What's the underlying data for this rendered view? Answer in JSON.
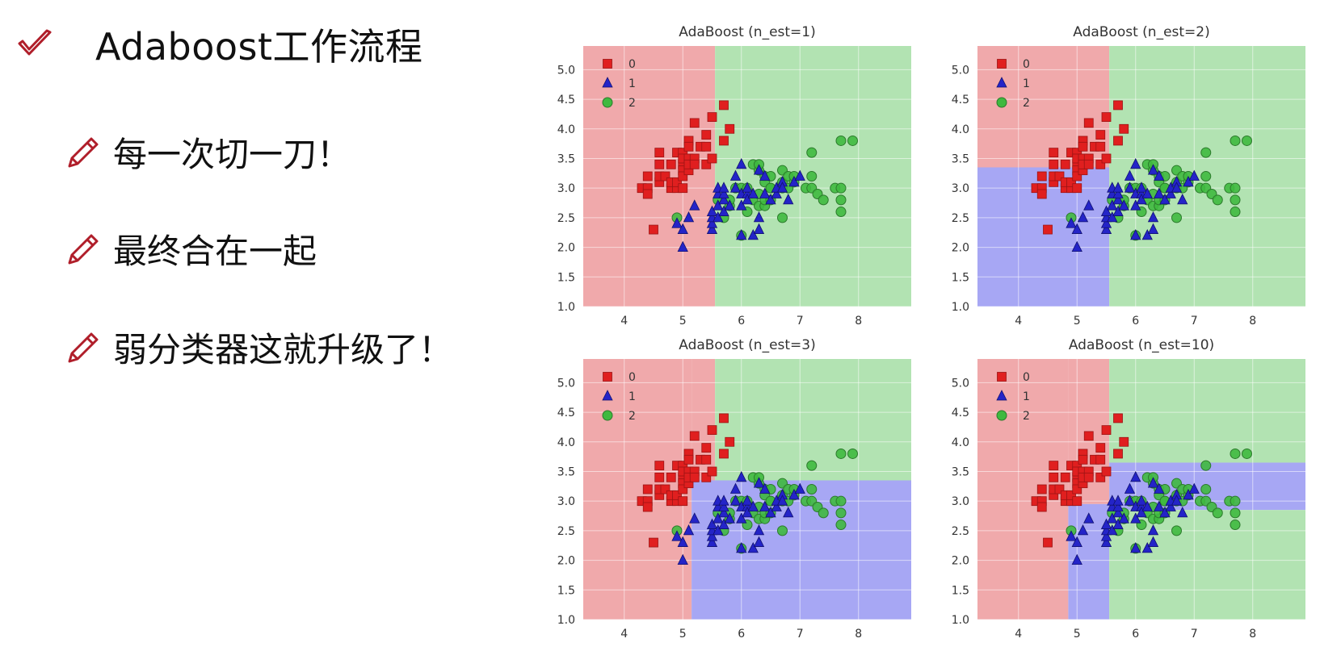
{
  "slide": {
    "title": "Adaboost工作流程",
    "bullets": [
      "每一次切一刀！",
      "最终合在一起",
      "弱分类器这就升级了！"
    ]
  },
  "colors": {
    "region_0": "#f0a9ab",
    "region_1": "#a7a7f4",
    "region_2": "#b2e3b2",
    "class_0": "#e01f1f",
    "class_1": "#2424c8",
    "class_2": "#3fb93f",
    "accent": "#b01e2a"
  },
  "chart_data": [
    {
      "type": "scatter",
      "title": "AdaBoost (n_est=1)",
      "xlim": [
        3.3,
        8.9
      ],
      "ylim": [
        1.0,
        5.4
      ],
      "xticks": [
        "4",
        "5",
        "6",
        "7",
        "8"
      ],
      "yticks": [
        "1.0",
        "1.5",
        "2.0",
        "2.5",
        "3.0",
        "3.5",
        "4.0",
        "4.5",
        "5.0"
      ],
      "legend": [
        "0",
        "1",
        "2"
      ],
      "legend_position": "top-left",
      "grid": true,
      "decision_regions": [
        {
          "class": 0,
          "x": [
            3.3,
            5.55
          ],
          "y": [
            1.0,
            5.4
          ]
        },
        {
          "class": 2,
          "x": [
            5.55,
            8.9
          ],
          "y": [
            1.0,
            5.4
          ]
        }
      ]
    },
    {
      "type": "scatter",
      "title": "AdaBoost (n_est=2)",
      "xlim": [
        3.3,
        8.9
      ],
      "ylim": [
        1.0,
        5.4
      ],
      "xticks": [
        "4",
        "5",
        "6",
        "7",
        "8"
      ],
      "yticks": [
        "1.0",
        "1.5",
        "2.0",
        "2.5",
        "3.0",
        "3.5",
        "4.0",
        "4.5",
        "5.0"
      ],
      "legend": [
        "0",
        "1",
        "2"
      ],
      "legend_position": "top-left",
      "grid": true,
      "decision_regions": [
        {
          "class": 0,
          "x": [
            3.3,
            5.55
          ],
          "y": [
            3.35,
            5.4
          ]
        },
        {
          "class": 1,
          "x": [
            3.3,
            5.55
          ],
          "y": [
            1.0,
            3.35
          ]
        },
        {
          "class": 2,
          "x": [
            5.55,
            8.9
          ],
          "y": [
            1.0,
            5.4
          ]
        }
      ]
    },
    {
      "type": "scatter",
      "title": "AdaBoost (n_est=3)",
      "xlim": [
        3.3,
        8.9
      ],
      "ylim": [
        1.0,
        5.4
      ],
      "xticks": [
        "4",
        "5",
        "6",
        "7",
        "8"
      ],
      "yticks": [
        "1.0",
        "1.5",
        "2.0",
        "2.5",
        "3.0",
        "3.5",
        "4.0",
        "4.5",
        "5.0"
      ],
      "legend": [
        "0",
        "1",
        "2"
      ],
      "legend_position": "top-left",
      "grid": true,
      "decision_regions": [
        {
          "class": 0,
          "x": [
            3.3,
            5.15
          ],
          "y": [
            1.0,
            5.4
          ]
        },
        {
          "class": 0,
          "x": [
            5.15,
            5.55
          ],
          "y": [
            3.35,
            5.4
          ]
        },
        {
          "class": 2,
          "x": [
            5.55,
            8.9
          ],
          "y": [
            3.35,
            5.4
          ]
        },
        {
          "class": 1,
          "x": [
            5.15,
            8.9
          ],
          "y": [
            1.0,
            3.35
          ]
        }
      ]
    },
    {
      "type": "scatter",
      "title": "AdaBoost (n_est=10)",
      "xlim": [
        3.3,
        8.9
      ],
      "ylim": [
        1.0,
        5.4
      ],
      "xticks": [
        "4",
        "5",
        "6",
        "7",
        "8"
      ],
      "yticks": [
        "1.0",
        "1.5",
        "2.0",
        "2.5",
        "3.0",
        "3.5",
        "4.0",
        "4.5",
        "5.0"
      ],
      "legend": [
        "0",
        "1",
        "2"
      ],
      "legend_position": "top-left",
      "grid": true,
      "decision_regions": [
        {
          "class": 0,
          "x": [
            3.3,
            4.85
          ],
          "y": [
            1.0,
            5.4
          ]
        },
        {
          "class": 0,
          "x": [
            4.85,
            5.55
          ],
          "y": [
            2.95,
            5.4
          ]
        },
        {
          "class": 1,
          "x": [
            4.85,
            5.55
          ],
          "y": [
            1.0,
            2.95
          ]
        },
        {
          "class": 2,
          "x": [
            5.55,
            8.9
          ],
          "y": [
            3.65,
            5.4
          ]
        },
        {
          "class": 1,
          "x": [
            5.55,
            8.9
          ],
          "y": [
            2.85,
            3.65
          ]
        },
        {
          "class": 2,
          "x": [
            5.55,
            8.9
          ],
          "y": [
            1.0,
            2.85
          ]
        }
      ]
    }
  ],
  "scatter_points": {
    "class_0": [
      [
        4.3,
        3.0
      ],
      [
        4.4,
        3.0
      ],
      [
        4.4,
        3.2
      ],
      [
        4.4,
        2.9
      ],
      [
        4.5,
        2.3
      ],
      [
        4.6,
        3.1
      ],
      [
        4.6,
        3.4
      ],
      [
        4.6,
        3.6
      ],
      [
        4.6,
        3.2
      ],
      [
        4.7,
        3.2
      ],
      [
        4.8,
        3.0
      ],
      [
        4.8,
        3.4
      ],
      [
        4.8,
        3.1
      ],
      [
        4.9,
        3.0
      ],
      [
        4.9,
        3.1
      ],
      [
        4.9,
        3.6
      ],
      [
        5.0,
        3.6
      ],
      [
        5.0,
        3.4
      ],
      [
        5.0,
        3.0
      ],
      [
        5.0,
        3.3
      ],
      [
        5.0,
        3.5
      ],
      [
        5.0,
        3.2
      ],
      [
        5.1,
        3.5
      ],
      [
        5.1,
        3.8
      ],
      [
        5.1,
        3.7
      ],
      [
        5.1,
        3.3
      ],
      [
        5.1,
        3.4
      ],
      [
        5.2,
        3.5
      ],
      [
        5.2,
        3.4
      ],
      [
        5.2,
        4.1
      ],
      [
        5.3,
        3.7
      ],
      [
        5.4,
        3.9
      ],
      [
        5.4,
        3.7
      ],
      [
        5.4,
        3.4
      ],
      [
        5.5,
        4.2
      ],
      [
        5.5,
        3.5
      ],
      [
        5.7,
        4.4
      ],
      [
        5.7,
        3.8
      ],
      [
        5.8,
        4.0
      ]
    ],
    "class_1": [
      [
        4.9,
        2.4
      ],
      [
        5.0,
        2.0
      ],
      [
        5.0,
        2.3
      ],
      [
        5.1,
        2.5
      ],
      [
        5.2,
        2.7
      ],
      [
        5.5,
        2.3
      ],
      [
        5.5,
        2.4
      ],
      [
        5.5,
        2.5
      ],
      [
        5.5,
        2.6
      ],
      [
        5.6,
        2.9
      ],
      [
        5.6,
        3.0
      ],
      [
        5.6,
        2.5
      ],
      [
        5.6,
        2.7
      ],
      [
        5.7,
        2.8
      ],
      [
        5.7,
        2.6
      ],
      [
        5.7,
        2.9
      ],
      [
        5.7,
        3.0
      ],
      [
        5.8,
        2.7
      ],
      [
        5.9,
        3.0
      ],
      [
        5.9,
        3.2
      ],
      [
        6.0,
        2.2
      ],
      [
        6.0,
        2.9
      ],
      [
        6.0,
        2.7
      ],
      [
        6.0,
        3.4
      ],
      [
        6.1,
        2.9
      ],
      [
        6.1,
        2.8
      ],
      [
        6.1,
        3.0
      ],
      [
        6.2,
        2.2
      ],
      [
        6.2,
        2.9
      ],
      [
        6.3,
        3.3
      ],
      [
        6.3,
        2.5
      ],
      [
        6.3,
        2.3
      ],
      [
        6.4,
        3.2
      ],
      [
        6.4,
        2.9
      ],
      [
        6.5,
        2.8
      ],
      [
        6.6,
        2.9
      ],
      [
        6.6,
        3.0
      ],
      [
        6.7,
        3.1
      ],
      [
        6.7,
        3.0
      ],
      [
        6.8,
        2.8
      ],
      [
        6.9,
        3.1
      ],
      [
        7.0,
        3.2
      ]
    ],
    "class_2": [
      [
        4.9,
        2.5
      ],
      [
        5.6,
        2.8
      ],
      [
        5.7,
        2.5
      ],
      [
        5.8,
        2.7
      ],
      [
        5.8,
        2.8
      ],
      [
        5.9,
        3.0
      ],
      [
        6.0,
        2.2
      ],
      [
        6.0,
        3.0
      ],
      [
        6.1,
        3.0
      ],
      [
        6.1,
        2.6
      ],
      [
        6.2,
        2.8
      ],
      [
        6.2,
        3.4
      ],
      [
        6.3,
        3.3
      ],
      [
        6.3,
        2.9
      ],
      [
        6.3,
        2.7
      ],
      [
        6.3,
        3.4
      ],
      [
        6.4,
        2.7
      ],
      [
        6.4,
        3.2
      ],
      [
        6.4,
        2.8
      ],
      [
        6.4,
        3.1
      ],
      [
        6.5,
        3.0
      ],
      [
        6.5,
        3.2
      ],
      [
        6.5,
        2.8
      ],
      [
        6.5,
        3.0
      ],
      [
        6.7,
        2.5
      ],
      [
        6.7,
        3.3
      ],
      [
        6.7,
        3.0
      ],
      [
        6.7,
        3.1
      ],
      [
        6.8,
        3.0
      ],
      [
        6.8,
        3.2
      ],
      [
        6.9,
        3.1
      ],
      [
        6.9,
        3.2
      ],
      [
        7.1,
        3.0
      ],
      [
        7.2,
        3.6
      ],
      [
        7.2,
        3.2
      ],
      [
        7.2,
        3.0
      ],
      [
        7.3,
        2.9
      ],
      [
        7.4,
        2.8
      ],
      [
        7.6,
        3.0
      ],
      [
        7.7,
        3.8
      ],
      [
        7.7,
        2.6
      ],
      [
        7.7,
        2.8
      ],
      [
        7.7,
        3.0
      ],
      [
        7.9,
        3.8
      ]
    ]
  }
}
